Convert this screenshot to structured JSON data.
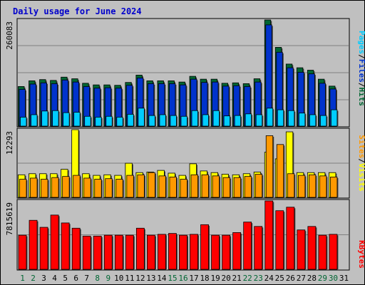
{
  "title": "Daily usage for June 2024",
  "colors": {
    "hits": "#006633",
    "files": "#0033cc",
    "pages": "#00ccff",
    "visits": "#ffff00",
    "sites": "#ff9900",
    "kbytes": "#ff0000",
    "title": "#0000cc",
    "weekday_label": "#000000",
    "weekend_label": "#006633"
  },
  "chart_data": [
    {
      "type": "bar",
      "panel": "hits-files-pages",
      "ymax_label": "260083",
      "ylim": [
        0,
        260083
      ],
      "categories": [
        "1",
        "2",
        "3",
        "4",
        "5",
        "6",
        "7",
        "8",
        "9",
        "10",
        "11",
        "12",
        "13",
        "14",
        "15",
        "16",
        "17",
        "18",
        "19",
        "20",
        "21",
        "22",
        "23",
        "24",
        "25",
        "26",
        "27",
        "28",
        "29",
        "30",
        "31"
      ],
      "series": [
        {
          "name": "Hits",
          "values": [
            97000,
            111000,
            114000,
            112000,
            120000,
            116000,
            105000,
            101000,
            101000,
            100000,
            107000,
            125000,
            111000,
            111000,
            111000,
            108000,
            122000,
            115000,
            115000,
            105000,
            106000,
            104000,
            116000,
            260083,
            193000,
            152000,
            143000,
            137000,
            115000,
            98000,
            0
          ]
        },
        {
          "name": "Files",
          "values": [
            90000,
            103000,
            106000,
            104000,
            113000,
            108000,
            97000,
            93000,
            94000,
            93000,
            100000,
            118000,
            104000,
            104000,
            104000,
            101000,
            115000,
            107000,
            108000,
            98000,
            99000,
            97000,
            108000,
            248000,
            181000,
            143000,
            132000,
            128000,
            105000,
            91000,
            0
          ]
        },
        {
          "name": "Pages",
          "values": [
            22000,
            28000,
            37000,
            38000,
            33000,
            34000,
            24000,
            22000,
            24000,
            22000,
            29000,
            44000,
            26000,
            28000,
            26000,
            24000,
            38000,
            28000,
            38000,
            25000,
            26000,
            30000,
            28000,
            44000,
            40000,
            38000,
            32000,
            28000,
            26000,
            40000,
            0
          ]
        }
      ]
    },
    {
      "type": "bar",
      "panel": "visits-sites",
      "ymax_label": "12293",
      "ylim": [
        0,
        12293
      ],
      "categories": [
        "1",
        "2",
        "3",
        "4",
        "5",
        "6",
        "7",
        "8",
        "9",
        "10",
        "11",
        "12",
        "13",
        "14",
        "15",
        "16",
        "17",
        "18",
        "19",
        "20",
        "21",
        "22",
        "23",
        "24",
        "25",
        "26",
        "27",
        "28",
        "29",
        "30",
        "31"
      ],
      "series": [
        {
          "name": "Visits",
          "values": [
            4100,
            4300,
            4300,
            4300,
            5100,
            12293,
            4300,
            4000,
            4100,
            4000,
            6200,
            4500,
            4600,
            4900,
            4400,
            4000,
            6100,
            4800,
            4500,
            4200,
            4100,
            4300,
            4600,
            8200,
            7000,
            11900,
            4500,
            4500,
            4500,
            4500,
            0
          ]
        },
        {
          "name": "Sites",
          "values": [
            3300,
            3500,
            3300,
            3600,
            3800,
            4000,
            3500,
            3300,
            3400,
            3300,
            4000,
            4100,
            4500,
            3900,
            3700,
            3300,
            4100,
            4100,
            3900,
            3600,
            3600,
            3800,
            4200,
            11200,
            9600,
            4300,
            4000,
            4100,
            3900,
            3700,
            0
          ]
        }
      ]
    },
    {
      "type": "bar",
      "panel": "kbytes",
      "ymax_label": "7815619",
      "ylim": [
        0,
        7815619
      ],
      "categories": [
        "1",
        "2",
        "3",
        "4",
        "5",
        "6",
        "7",
        "8",
        "9",
        "10",
        "11",
        "12",
        "13",
        "14",
        "15",
        "16",
        "17",
        "18",
        "19",
        "20",
        "21",
        "22",
        "23",
        "24",
        "25",
        "26",
        "27",
        "28",
        "29",
        "30",
        "31"
      ],
      "series": [
        {
          "name": "KBytes",
          "values": [
            3900000,
            5600000,
            4800000,
            6200000,
            5300000,
            4700000,
            3800000,
            3800000,
            3900000,
            3900000,
            3900000,
            4700000,
            3900000,
            4000000,
            4100000,
            3900000,
            4000000,
            5100000,
            3900000,
            3900000,
            4200000,
            5400000,
            4900000,
            7815619,
            6700000,
            7100000,
            4500000,
            4900000,
            3900000,
            4000000,
            0
          ]
        }
      ]
    }
  ],
  "x_labels": [
    "1",
    "2",
    "3",
    "4",
    "5",
    "6",
    "7",
    "8",
    "9",
    "10",
    "11",
    "12",
    "13",
    "14",
    "15",
    "16",
    "17",
    "18",
    "19",
    "20",
    "21",
    "22",
    "23",
    "24",
    "25",
    "26",
    "27",
    "28",
    "29",
    "30",
    "31"
  ],
  "weekend_days": [
    1,
    2,
    8,
    9,
    15,
    16,
    22,
    23,
    29,
    30
  ],
  "right_labels": {
    "top": [
      "Pages",
      "/",
      "Files",
      "/",
      "Hits"
    ],
    "middle": [
      "Sites",
      "/",
      "Visits"
    ],
    "bottom": [
      "KBytes"
    ]
  }
}
